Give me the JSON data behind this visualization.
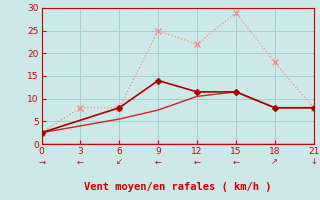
{
  "bg_color": "#cce8e8",
  "grid_color": "#99cccc",
  "line1_x": [
    0,
    3,
    6,
    9,
    12,
    15,
    18,
    21
  ],
  "line1_y": [
    2.5,
    8,
    8,
    25,
    22,
    29,
    18,
    8
  ],
  "line1_color": "#ff8888",
  "line2_x": [
    0,
    6,
    9,
    12,
    15,
    18,
    21
  ],
  "line2_y": [
    2.5,
    8,
    14,
    11.5,
    11.5,
    8,
    8
  ],
  "line2_color": "#aa0000",
  "line3_x": [
    0,
    3,
    6,
    9,
    12,
    15,
    18,
    21
  ],
  "line3_y": [
    2.5,
    4,
    5.5,
    7.5,
    10.5,
    11.5,
    8,
    8
  ],
  "line3_color": "#cc2222",
  "xlabel": "Vent moyen/en rafales ( km/h )",
  "xlabel_color": "#cc0000",
  "tick_color": "#cc0000",
  "xlim": [
    0,
    21
  ],
  "ylim": [
    0,
    30
  ],
  "xticks": [
    0,
    3,
    6,
    9,
    12,
    15,
    18,
    21
  ],
  "yticks": [
    0,
    5,
    10,
    15,
    20,
    25,
    30
  ],
  "arrow_chars": [
    "→",
    "←",
    "↙",
    "←",
    "←",
    "←",
    "↗",
    "↓"
  ]
}
